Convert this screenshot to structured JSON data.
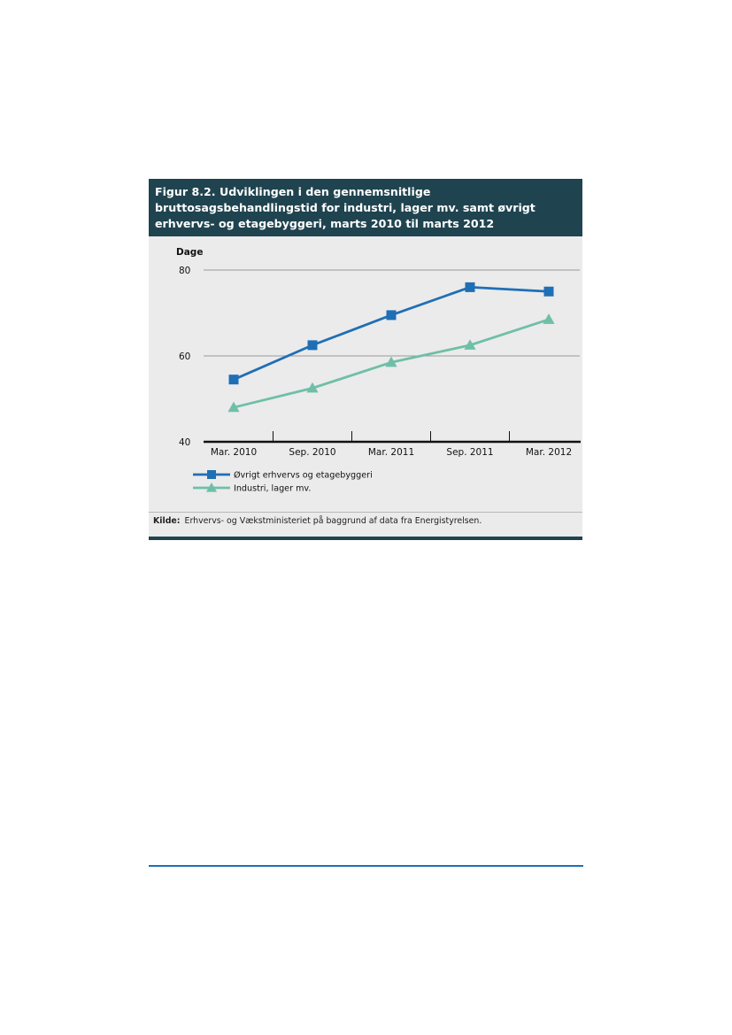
{
  "figure": {
    "title": "Figur 8.2. Udviklingen i den gennemsnitlige bruttosagsbehandlingstid for industri, lager mv. samt øvrigt erhvervs- og etagebyggeri, marts 2010 til marts 2012",
    "source_label": "Kilde:",
    "source_text": "Erhvervs- og Vækstministeriet på baggrund af data fra Energistyrelsen."
  },
  "colors": {
    "header_bg": "#1f4450",
    "panel_bg": "#ebebeb",
    "series_blue": "#1f6fb5",
    "series_teal": "#6fbfa8",
    "page_rule": "#1f6fb5"
  },
  "chart_data": {
    "type": "line",
    "ylabel": "Dage",
    "xlabel": "",
    "title": "Figur 8.2. Udviklingen i den gennemsnitlige bruttosagsbehandlingstid for industri, lager mv. samt øvrigt erhvervs- og etagebyggeri, marts 2010 til marts 2012",
    "categories": [
      "Mar. 2010",
      "Sep. 2010",
      "Mar. 2011",
      "Sep. 2011",
      "Mar. 2012"
    ],
    "ylim": [
      40,
      80
    ],
    "yticks": [
      40,
      60,
      80
    ],
    "grid": true,
    "legend_position": "bottom-left",
    "series": [
      {
        "name": "Øvrigt erhvervs og etagebyggeri",
        "values": [
          54.5,
          62.5,
          69.5,
          76,
          75
        ],
        "marker": "square",
        "color": "#1f6fb5"
      },
      {
        "name": "Industri, lager mv.",
        "values": [
          48,
          52.5,
          58.5,
          62.5,
          68.5
        ],
        "marker": "triangle",
        "color": "#6fbfa8"
      }
    ]
  }
}
